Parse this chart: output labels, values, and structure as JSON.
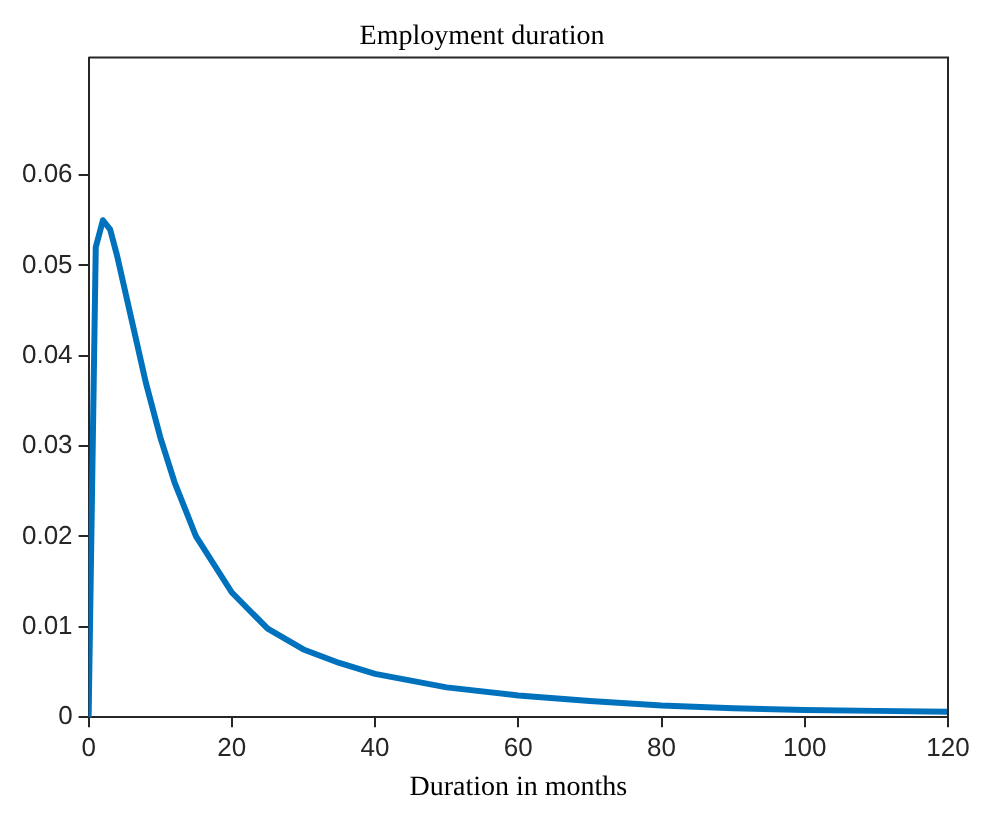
{
  "chart_data": {
    "type": "line",
    "title": "Employment duration",
    "xlabel": "Duration in months",
    "x": [
      0,
      1,
      2,
      3,
      4,
      6,
      8,
      10,
      12,
      15,
      20,
      25,
      30,
      35,
      40,
      50,
      60,
      70,
      80,
      90,
      100,
      110,
      120
    ],
    "series": [
      {
        "color": "#0072bd",
        "values": [
          0,
          0.052,
          0.055,
          0.054,
          0.051,
          0.044,
          0.037,
          0.031,
          0.026,
          0.02,
          0.0138,
          0.0098,
          0.0075,
          0.006,
          0.0048,
          0.0033,
          0.0024,
          0.0018,
          0.0013,
          0.001,
          0.0008,
          0.0007,
          0.0006
        ]
      }
    ],
    "xlim": [
      0,
      120
    ],
    "xticks": [
      0,
      20,
      40,
      60,
      80,
      100,
      120
    ],
    "ylim": [
      0,
      0.073
    ],
    "yticks": [
      0,
      0.01,
      0.02,
      0.03,
      0.04,
      0.05,
      0.06
    ],
    "grid": false,
    "legend": false,
    "marker": "none",
    "line_style": "solid"
  }
}
